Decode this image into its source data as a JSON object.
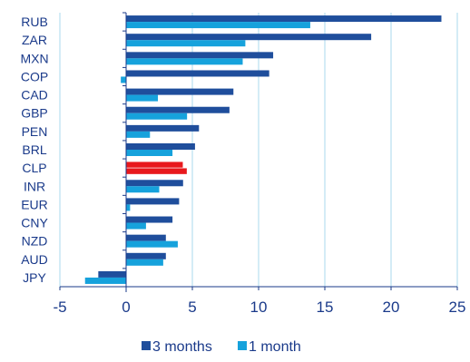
{
  "chart_data": {
    "type": "bar",
    "orientation": "horizontal",
    "categories": [
      "RUB",
      "ZAR",
      "MXN",
      "COP",
      "CAD",
      "GBP",
      "PEN",
      "BRL",
      "CLP",
      "INR",
      "EUR",
      "CNY",
      "NZD",
      "AUD",
      "JPY"
    ],
    "series": [
      {
        "name": "3 months",
        "color": "#1f4e9c",
        "values": [
          23.8,
          18.5,
          11.1,
          10.8,
          8.1,
          7.8,
          5.5,
          5.2,
          4.3,
          4.3,
          4.0,
          3.5,
          3.0,
          3.0,
          -2.1
        ]
      },
      {
        "name": "1 month",
        "color": "#16a2dc",
        "values": [
          13.9,
          9.0,
          8.8,
          -0.4,
          2.4,
          4.6,
          1.8,
          3.5,
          4.6,
          2.5,
          0.3,
          1.5,
          3.9,
          2.8,
          -3.1
        ]
      }
    ],
    "highlight": {
      "category": "CLP",
      "color": "#e8181c"
    },
    "xlim": [
      -5,
      25
    ],
    "xticks": [
      "-5",
      "0",
      "5",
      "10",
      "15",
      "20",
      "25"
    ],
    "xtick_values": [
      -5,
      0,
      5,
      10,
      15,
      20,
      25
    ],
    "grid": "vertical",
    "grid_color": "#a8d8ee",
    "axis_color": "#1a3a8a",
    "legend_position": "bottom",
    "title": "",
    "xlabel": "",
    "ylabel": ""
  }
}
